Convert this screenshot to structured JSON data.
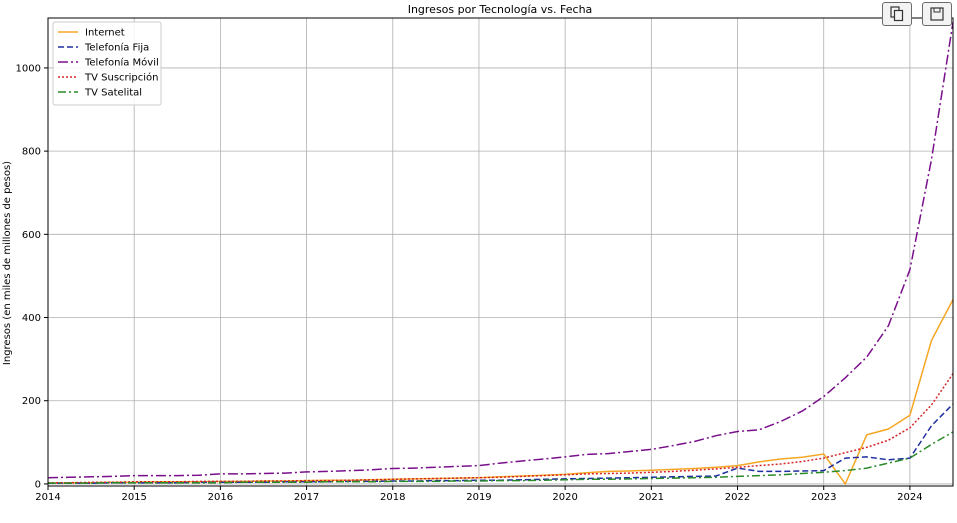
{
  "toolbar": {
    "copy_icon": "copy-icon",
    "save_icon": "save-icon"
  },
  "chart_data": {
    "type": "line",
    "title": "Ingresos por Tecnología vs. Fecha",
    "xlabel": "",
    "ylabel": "Ingresos (en miles de millones de pesos)",
    "xlim": [
      2014.0,
      2024.5
    ],
    "ylim": [
      -5,
      1120
    ],
    "xticks": [
      "2014",
      "2015",
      "2016",
      "2017",
      "2018",
      "2019",
      "2020",
      "2021",
      "2022",
      "2023",
      "2024"
    ],
    "yticks": [
      "0",
      "200",
      "400",
      "600",
      "800",
      "1000"
    ],
    "grid": true,
    "legend_position": "top-left",
    "x": [
      2014.0,
      2014.25,
      2014.5,
      2014.75,
      2015.0,
      2015.25,
      2015.5,
      2015.75,
      2016.0,
      2016.25,
      2016.5,
      2016.75,
      2017.0,
      2017.25,
      2017.5,
      2017.75,
      2018.0,
      2018.25,
      2018.5,
      2018.75,
      2019.0,
      2019.25,
      2019.5,
      2019.75,
      2020.0,
      2020.25,
      2020.5,
      2020.75,
      2021.0,
      2021.25,
      2021.5,
      2021.75,
      2022.0,
      2022.25,
      2022.5,
      2022.75,
      2023.0,
      2023.25,
      2023.5,
      2023.75,
      2024.0,
      2024.25,
      2024.5
    ],
    "series": [
      {
        "name": "Internet",
        "color": "#f5a623",
        "dash": "",
        "values": [
          2,
          3,
          3,
          4,
          4,
          5,
          5,
          5,
          6,
          6,
          7,
          7,
          8,
          9,
          9,
          10,
          11,
          12,
          13,
          14,
          15,
          17,
          19,
          21,
          23,
          27,
          30,
          31,
          33,
          35,
          37,
          40,
          44,
          53,
          60,
          64,
          72,
          0,
          118,
          132,
          165,
          345,
          443
        ]
      },
      {
        "name": "Telefonía Fija",
        "color": "#1f2fa0",
        "dash": "6,3",
        "values": [
          2,
          2,
          2,
          3,
          3,
          3,
          3,
          4,
          4,
          4,
          4,
          5,
          5,
          5,
          6,
          6,
          7,
          7,
          8,
          8,
          9,
          9,
          10,
          11,
          12,
          13,
          14,
          15,
          16,
          17,
          18,
          19,
          38,
          30,
          30,
          31,
          32,
          62,
          65,
          58,
          62,
          140,
          192
        ]
      },
      {
        "name": "Telefonía Móvil",
        "color": "#7a0f8c",
        "dash": "10,3,2,3",
        "values": [
          15,
          16,
          17,
          18,
          20,
          20,
          20,
          21,
          24,
          24,
          25,
          26,
          29,
          30,
          32,
          34,
          37,
          38,
          40,
          42,
          44,
          50,
          55,
          60,
          65,
          71,
          73,
          78,
          83,
          92,
          102,
          116,
          126,
          130,
          150,
          175,
          210,
          255,
          305,
          380,
          515,
          780,
          1110
        ]
      },
      {
        "name": "TV Suscripción",
        "color": "#d62728",
        "dash": "2,2",
        "values": [
          3,
          3,
          4,
          4,
          5,
          5,
          5,
          6,
          6,
          6,
          7,
          7,
          8,
          8,
          9,
          10,
          11,
          12,
          13,
          14,
          15,
          16,
          18,
          20,
          22,
          24,
          25,
          26,
          28,
          30,
          33,
          36,
          40,
          44,
          48,
          54,
          62,
          75,
          88,
          105,
          135,
          190,
          265
        ]
      },
      {
        "name": "TV Satelital",
        "color": "#2a8a2a",
        "dash": "8,3,2,3",
        "values": [
          2,
          2,
          2,
          3,
          3,
          3,
          3,
          3,
          3,
          4,
          4,
          4,
          4,
          5,
          5,
          5,
          6,
          6,
          6,
          7,
          7,
          8,
          8,
          9,
          10,
          11,
          11,
          12,
          13,
          14,
          15,
          16,
          18,
          20,
          22,
          25,
          28,
          32,
          38,
          50,
          62,
          95,
          125
        ]
      }
    ]
  }
}
